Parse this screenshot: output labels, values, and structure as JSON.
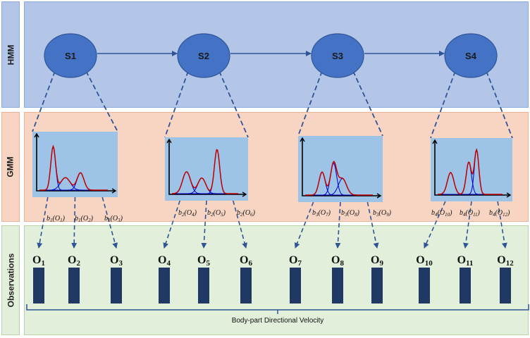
{
  "bands": {
    "hmm_label": "HMM",
    "gmm_label": "GMM",
    "observations_label": "Observations"
  },
  "states": [
    {
      "label": "S1"
    },
    {
      "label": "S2"
    },
    {
      "label": "S3"
    },
    {
      "label": "S4"
    }
  ],
  "emissions": [
    {
      "fn": "b",
      "sub": "1",
      "obs": "O",
      "obs_sub": "1"
    },
    {
      "fn": "b",
      "sub": "1",
      "obs": "O",
      "obs_sub": "2"
    },
    {
      "fn": "b",
      "sub": "1",
      "obs": "O",
      "obs_sub": "3"
    },
    {
      "fn": "b",
      "sub": "2",
      "obs": "O",
      "obs_sub": "4"
    },
    {
      "fn": "b",
      "sub": "2",
      "obs": "O",
      "obs_sub": "5"
    },
    {
      "fn": "b",
      "sub": "2",
      "obs": "O",
      "obs_sub": "6"
    },
    {
      "fn": "b",
      "sub": "3",
      "obs": "O",
      "obs_sub": "7"
    },
    {
      "fn": "b",
      "sub": "3",
      "obs": "O",
      "obs_sub": "8"
    },
    {
      "fn": "b",
      "sub": "3",
      "obs": "O",
      "obs_sub": "9"
    },
    {
      "fn": "b",
      "sub": "4",
      "obs": "O",
      "obs_sub": "10"
    },
    {
      "fn": "b",
      "sub": "4",
      "obs": "O",
      "obs_sub": "11"
    },
    {
      "fn": "b",
      "sub": "4",
      "obs": "O",
      "obs_sub": "12"
    }
  ],
  "observations": [
    {
      "label": "O",
      "sub": "1"
    },
    {
      "label": "O",
      "sub": "2"
    },
    {
      "label": "O",
      "sub": "3"
    },
    {
      "label": "O",
      "sub": "4"
    },
    {
      "label": "O",
      "sub": "5"
    },
    {
      "label": "O",
      "sub": "6"
    },
    {
      "label": "O",
      "sub": "7"
    },
    {
      "label": "O",
      "sub": "8"
    },
    {
      "label": "O",
      "sub": "9"
    },
    {
      "label": "O",
      "sub": "10"
    },
    {
      "label": "O",
      "sub": "11"
    },
    {
      "label": "O",
      "sub": "12"
    }
  ],
  "axis_title": "Body-part Directional Velocity",
  "colors": {
    "hmm_band": "#b4c6e7",
    "gmm_band": "#f8d5c2",
    "obs_band": "#e2efda",
    "state_fill": "#4472c4",
    "arrow": "#2f5597",
    "bar": "#1f3864",
    "plot_bg": "#9dc3e6",
    "mixture_curve": "#c00000",
    "component_curve": "#0000cc"
  }
}
